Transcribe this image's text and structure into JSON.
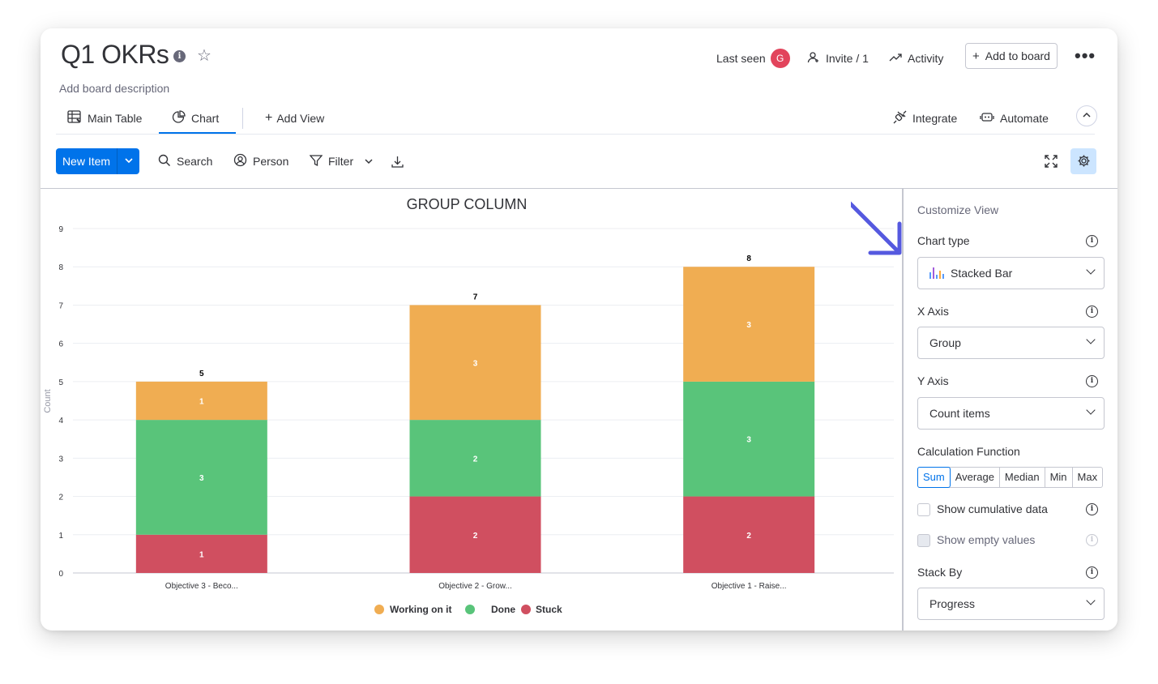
{
  "board": {
    "title": "Q1 OKRs",
    "description": "Add board description",
    "info_icon": "info-icon",
    "star_icon": "star-icon"
  },
  "header": {
    "last_seen": "Last seen",
    "avatar_initial": "G",
    "invite": "Invite / 1",
    "activity": "Activity",
    "add_to_board": "Add to board",
    "more": "•••"
  },
  "tabs": {
    "main_table": "Main Table",
    "chart": "Chart",
    "add_view": "Add View",
    "integrate": "Integrate",
    "automate": "Automate"
  },
  "toolbar": {
    "new_item": "New Item",
    "search": "Search",
    "person": "Person",
    "filter": "Filter"
  },
  "panel": {
    "title": "Customize View",
    "chart_type_label": "Chart type",
    "chart_type_value": "Stacked Bar",
    "x_axis_label": "X Axis",
    "x_axis_value": "Group",
    "y_axis_label": "Y Axis",
    "y_axis_value": "Count items",
    "calc_label": "Calculation Function",
    "calc_options": [
      "Sum",
      "Average",
      "Median",
      "Min",
      "Max"
    ],
    "calc_selected": "Sum",
    "cumulative_label": "Show cumulative data",
    "empty_values_label": "Show empty values",
    "stack_by_label": "Stack By",
    "stack_by_value": "Progress"
  },
  "colors": {
    "accent": "#0073ea",
    "working": "#f0ad52",
    "done": "#59c47a",
    "stuck": "#d04f60",
    "arrow": "#5559df"
  },
  "chart_data": {
    "type": "bar",
    "stacked": true,
    "title": "GROUP COLUMN",
    "xlabel": "",
    "ylabel": "Count",
    "ylim": [
      0,
      9
    ],
    "yticks": [
      0,
      1,
      2,
      3,
      4,
      5,
      6,
      7,
      8,
      9
    ],
    "categories": [
      "Objective 3 - Beco...",
      "Objective 2 - Grow...",
      "Objective 1 - Raise..."
    ],
    "totals": [
      5,
      7,
      8
    ],
    "series": [
      {
        "name": "Stuck",
        "color": "#d04f60",
        "values": [
          1,
          2,
          2
        ]
      },
      {
        "name": "Done",
        "color": "#59c47a",
        "values": [
          3,
          2,
          3
        ]
      },
      {
        "name": "Working on it",
        "color": "#f0ad52",
        "values": [
          1,
          3,
          3
        ]
      }
    ],
    "legend": [
      "Working on it",
      "Done",
      "Stuck"
    ],
    "legend_position": "bottom"
  }
}
